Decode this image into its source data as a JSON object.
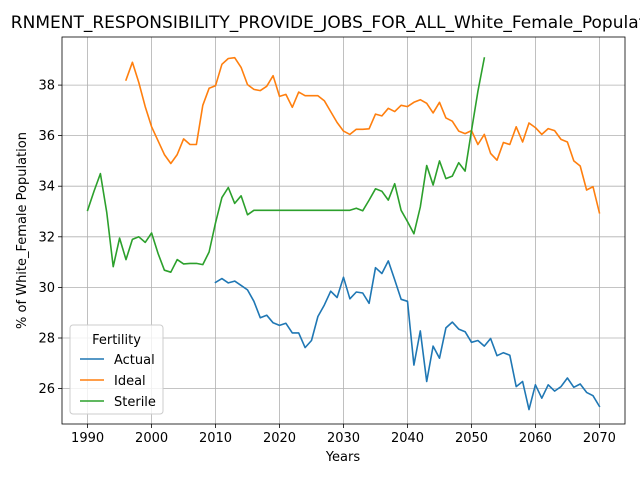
{
  "chart_data": {
    "type": "line",
    "title": "RNMENT_RESPONSIBILITY_PROVIDE_JOBS_FOR_ALL_White_Female_Population",
    "xlabel": "Years",
    "ylabel": "% of White_Female Population",
    "xlim": [
      1986,
      2074
    ],
    "ylim": [
      24.6,
      39.9
    ],
    "xticks": [
      1990,
      2000,
      2010,
      2020,
      2030,
      2040,
      2050,
      2060,
      2070
    ],
    "yticks": [
      26,
      28,
      30,
      32,
      34,
      36,
      38
    ],
    "grid": true,
    "legend": {
      "title": "Fertility",
      "position": "lower-left"
    },
    "series": [
      {
        "name": "Actual",
        "color": "#1f77b4",
        "x": [
          2010,
          2011,
          2012,
          2013,
          2014,
          2015,
          2016,
          2017,
          2018,
          2019,
          2020,
          2021,
          2022,
          2023,
          2024,
          2025,
          2026,
          2027,
          2028,
          2029,
          2030,
          2031,
          2032,
          2033,
          2034,
          2035,
          2036,
          2037,
          2038,
          2039,
          2040,
          2041,
          2042,
          2043,
          2044,
          2045,
          2046,
          2047,
          2048,
          2049,
          2050,
          2051,
          2052,
          2053,
          2054,
          2055,
          2056,
          2057,
          2058,
          2059,
          2060,
          2061,
          2062,
          2063,
          2064,
          2065,
          2066,
          2067,
          2068,
          2069,
          2070
        ],
        "y": [
          30.2,
          30.35,
          30.18,
          30.25,
          30.08,
          29.9,
          29.45,
          28.8,
          28.9,
          28.6,
          28.5,
          28.58,
          28.2,
          28.2,
          27.62,
          27.9,
          28.85,
          29.3,
          29.85,
          29.6,
          30.4,
          29.55,
          29.82,
          29.78,
          29.37,
          30.78,
          30.55,
          31.05,
          30.3,
          29.53,
          29.45,
          26.93,
          28.28,
          26.28,
          27.68,
          27.2,
          28.4,
          28.63,
          28.35,
          28.25,
          27.83,
          27.9,
          27.68,
          27.98,
          27.3,
          27.42,
          27.32,
          26.08,
          26.28,
          25.17,
          26.15,
          25.62,
          26.15,
          25.9,
          26.08,
          26.42,
          26.05,
          26.18,
          25.85,
          25.72,
          25.3
        ]
      },
      {
        "name": "Ideal",
        "color": "#ff7f0e",
        "x": [
          1996,
          1997,
          1998,
          1999,
          2000,
          2001,
          2002,
          2003,
          2004,
          2005,
          2006,
          2007,
          2008,
          2009,
          2010,
          2011,
          2012,
          2013,
          2014,
          2015,
          2016,
          2017,
          2018,
          2019,
          2020,
          2021,
          2022,
          2023,
          2024,
          2025,
          2026,
          2027,
          2028,
          2029,
          2030,
          2031,
          2032,
          2033,
          2034,
          2035,
          2036,
          2037,
          2038,
          2039,
          2040,
          2041,
          2042,
          2043,
          2044,
          2045,
          2046,
          2047,
          2048,
          2049,
          2050,
          2051,
          2052,
          2053,
          2054,
          2055,
          2056,
          2057,
          2058,
          2059,
          2060,
          2061,
          2062,
          2063,
          2064,
          2065,
          2066,
          2067,
          2068,
          2069,
          2070
        ],
        "y": [
          38.2,
          38.9,
          38.1,
          37.15,
          36.35,
          35.8,
          35.25,
          34.9,
          35.25,
          35.87,
          35.65,
          35.65,
          37.2,
          37.87,
          37.97,
          38.82,
          39.05,
          39.08,
          38.7,
          38.02,
          37.83,
          37.78,
          37.95,
          38.37,
          37.55,
          37.63,
          37.12,
          37.72,
          37.58,
          37.58,
          37.58,
          37.38,
          36.95,
          36.52,
          36.18,
          36.05,
          36.25,
          36.25,
          36.27,
          36.85,
          36.78,
          37.08,
          36.95,
          37.2,
          37.15,
          37.32,
          37.42,
          37.28,
          36.9,
          37.32,
          36.7,
          36.57,
          36.18,
          36.08,
          36.2,
          35.65,
          36.05,
          35.3,
          35.03,
          35.73,
          35.65,
          36.35,
          35.75,
          36.5,
          36.32,
          36.05,
          36.28,
          36.2,
          35.85,
          35.75,
          35.0,
          34.8,
          33.85,
          33.98,
          32.95
        ]
      },
      {
        "name": "Sterile",
        "color": "#2ca02c",
        "x": [
          1990,
          1991,
          1992,
          1993,
          1994,
          1995,
          1996,
          1997,
          1998,
          1999,
          2000,
          2001,
          2002,
          2003,
          2004,
          2005,
          2006,
          2007,
          2008,
          2009,
          2010,
          2011,
          2012,
          2013,
          2014,
          2015,
          2016,
          2017,
          2018,
          2019,
          2020,
          2021,
          2022,
          2023,
          2024,
          2025,
          2026,
          2027,
          2028,
          2029,
          2030,
          2031,
          2032,
          2033,
          2034,
          2035,
          2036,
          2037,
          2038,
          2039,
          2040,
          2041,
          2042,
          2043,
          2044,
          2045,
          2046,
          2047,
          2048,
          2049,
          2050,
          2051,
          2052
        ],
        "y": [
          33.05,
          33.8,
          34.5,
          32.95,
          30.82,
          31.95,
          31.1,
          31.9,
          32.0,
          31.78,
          32.15,
          31.35,
          30.68,
          30.6,
          31.1,
          30.93,
          30.95,
          30.95,
          30.9,
          31.4,
          32.55,
          33.55,
          33.95,
          33.32,
          33.62,
          32.87,
          33.05,
          33.05,
          33.05,
          33.05,
          33.05,
          33.05,
          33.05,
          33.05,
          33.05,
          33.05,
          33.05,
          33.05,
          33.05,
          33.05,
          33.05,
          33.05,
          33.13,
          33.03,
          33.45,
          33.9,
          33.8,
          33.45,
          34.1,
          33.05,
          32.6,
          32.12,
          33.18,
          34.82,
          34.05,
          35.0,
          34.3,
          34.4,
          34.93,
          34.6,
          36.2,
          37.75,
          39.07
        ]
      }
    ]
  }
}
